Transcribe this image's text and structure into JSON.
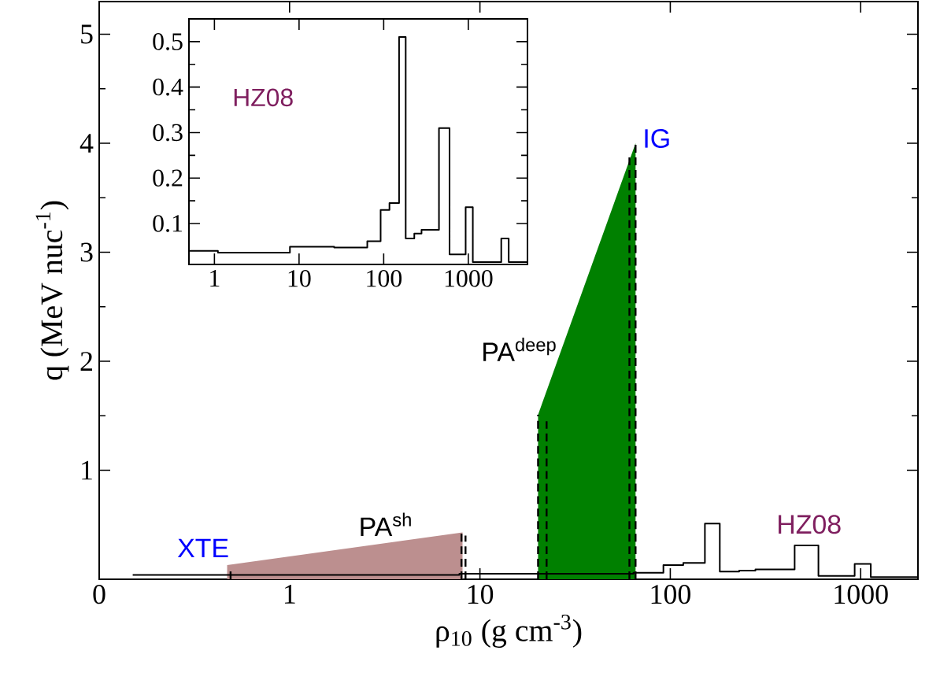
{
  "chart_data": [
    {
      "type": "step",
      "xlabel": "ρ$_{10}$ (g cm$^{-3}$)",
      "ylabel": "q (MeV nuc$^{-1}$)",
      "log": "x",
      "xlim": [
        0.1,
        2000
      ],
      "ylim": [
        0,
        5.3
      ],
      "xticks": [
        {
          "value": 0.1,
          "label": "0"
        },
        1,
        10,
        100,
        1000
      ],
      "yticks": [
        1,
        2,
        3,
        4,
        5
      ],
      "series": [
        {
          "type": "area",
          "color": "#bc8f8f",
          "x": [
            0.47,
            8.1
          ],
          "values": [
            0.13,
            0.43
          ]
        },
        {
          "type": "area",
          "color": "#008000",
          "x": [
            20.2,
            65.7
          ],
          "values": [
            1.51,
            4.0
          ]
        },
        {
          "type": "step",
          "color": "#000000",
          "x": [
            0.15,
            1.1,
            7.8,
            26,
            64,
            92,
            117,
            152,
            182,
            230,
            280,
            450,
            600,
            930,
            1130,
            2000
          ],
          "values": [
            0.04,
            0.04,
            0.05,
            0.05,
            0.06,
            0.13,
            0.15,
            0.51,
            0.07,
            0.08,
            0.09,
            0.31,
            0.03,
            0.14,
            0.02,
            0.02
          ]
        },
        {
          "type": "line",
          "line_style": "dashed",
          "color": "#000000",
          "x": [
            0.49,
            0.49
          ],
          "values": [
            0,
            0.1
          ]
        },
        {
          "type": "line",
          "line_style": "dashed",
          "color": "#000000",
          "x": [
            8.0,
            8.0
          ],
          "values": [
            0,
            0.43
          ]
        },
        {
          "type": "line",
          "line_style": "dashed",
          "color": "#000000",
          "x": [
            8.4,
            8.4
          ],
          "values": [
            0,
            0.4
          ]
        },
        {
          "type": "line",
          "line_style": "dashed",
          "color": "#000000",
          "x": [
            20.2,
            20.2
          ],
          "values": [
            0,
            1.51
          ]
        },
        {
          "type": "line",
          "line_style": "dashed",
          "color": "#000000",
          "x": [
            22.4,
            22.4
          ],
          "values": [
            0,
            1.45
          ]
        },
        {
          "type": "line",
          "line_style": "dashed",
          "color": "#000000",
          "x": [
            61,
            61
          ],
          "values": [
            0,
            3.9
          ]
        },
        {
          "type": "line",
          "line_style": "dashed",
          "color": "#000000",
          "x": [
            65.7,
            65.7
          ],
          "values": [
            0,
            4.0
          ]
        }
      ],
      "annotations": [
        "XTE",
        "PA$^{sh}$",
        "PA$^{deep}$",
        "IG",
        "HZ08"
      ]
    },
    {
      "type": "step",
      "log": "x",
      "xlim": [
        0.5,
        5000
      ],
      "ylim": [
        0.01,
        0.55
      ],
      "xticks": [
        1,
        10,
        100,
        1000
      ],
      "yticks": [
        0.1,
        0.2,
        0.3,
        0.4,
        0.5
      ],
      "series": [
        {
          "color": "#000000",
          "x": [
            0.5,
            1.1,
            7.8,
            26,
            64,
            92,
            117,
            152,
            182,
            230,
            280,
            450,
            600,
            930,
            1130,
            2450,
            3000,
            5000
          ],
          "values": [
            0.04,
            0.036,
            0.049,
            0.047,
            0.061,
            0.13,
            0.145,
            0.51,
            0.067,
            0.078,
            0.086,
            0.31,
            0.032,
            0.136,
            0.015,
            0.067,
            0.015,
            0.015
          ]
        }
      ],
      "annotations": [
        "HZ08"
      ]
    }
  ]
}
